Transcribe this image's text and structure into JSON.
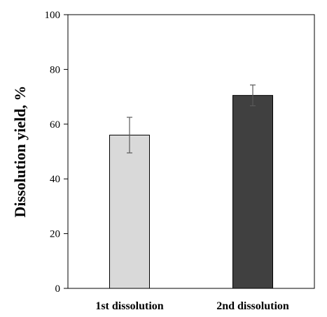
{
  "chart_data": {
    "type": "bar",
    "title": "",
    "xlabel": "",
    "ylabel": "Dissolution yield, %",
    "ylim": [
      0,
      100
    ],
    "yticks": [
      0,
      20,
      40,
      60,
      80,
      100
    ],
    "grid": false,
    "categories": [
      "1st dissolution",
      "2nd dissolution"
    ],
    "values": [
      56,
      70.5
    ],
    "errors": [
      6.5,
      3.8
    ],
    "bar_colors": [
      "#d9d9d9",
      "#404040"
    ],
    "error_color": "#595959"
  }
}
